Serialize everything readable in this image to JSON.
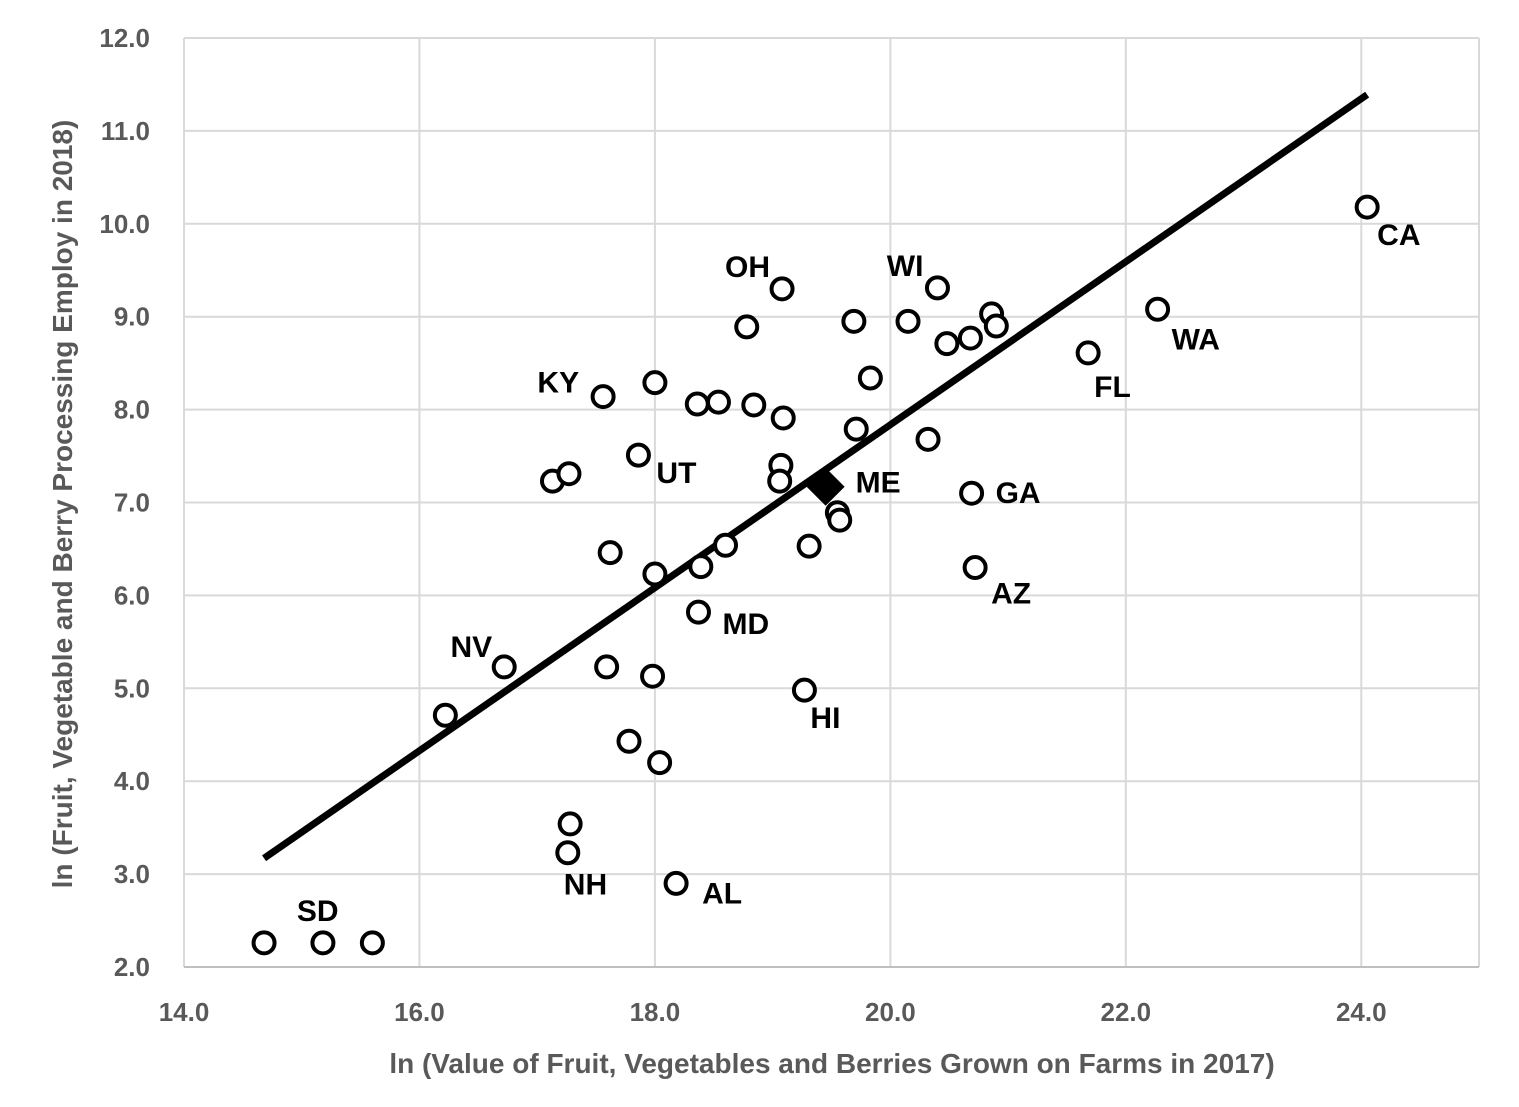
{
  "chart_data": {
    "type": "scatter",
    "xlabel": "ln (Value of Fruit, Vegetables and Berries Grown on Farms in 2017)",
    "ylabel": "ln (Fruit, Vegetable and Berry Processing Employ in 2018)",
    "xlim": [
      14.0,
      25.0
    ],
    "ylim": [
      2.0,
      12.0
    ],
    "x_ticks": [
      "14.0",
      "16.0",
      "18.0",
      "20.0",
      "22.0",
      "24.0"
    ],
    "y_ticks": [
      "2.0",
      "3.0",
      "4.0",
      "5.0",
      "6.0",
      "7.0",
      "8.0",
      "9.0",
      "10.0",
      "11.0",
      "12.0"
    ],
    "grid": true,
    "legend": "none",
    "colors": {
      "markers": "#000000",
      "trendline": "#000000",
      "grid": "#d9d9d9",
      "axis_text": "#595959"
    },
    "points": [
      {
        "x": 24.05,
        "y": 10.18,
        "label": "CA"
      },
      {
        "x": 22.27,
        "y": 9.08,
        "label": "WA"
      },
      {
        "x": 21.68,
        "y": 8.61,
        "label": "FL"
      },
      {
        "x": 20.4,
        "y": 9.31,
        "label": "WI"
      },
      {
        "x": 19.08,
        "y": 9.3,
        "label": "OH"
      },
      {
        "x": 20.69,
        "y": 7.1,
        "label": "GA"
      },
      {
        "x": 20.72,
        "y": 6.3,
        "label": "AZ"
      },
      {
        "x": 17.56,
        "y": 8.14,
        "label": "KY"
      },
      {
        "x": 17.86,
        "y": 7.51,
        "label": "UT"
      },
      {
        "x": 18.37,
        "y": 5.82,
        "label": "MD"
      },
      {
        "x": 16.72,
        "y": 5.23,
        "label": "NV"
      },
      {
        "x": 19.27,
        "y": 4.98,
        "label": "HI"
      },
      {
        "x": 17.26,
        "y": 3.23,
        "label": "NH"
      },
      {
        "x": 18.18,
        "y": 2.9,
        "label": "AL"
      },
      {
        "x": 15.18,
        "y": 2.26,
        "label": "SD"
      },
      {
        "x": 14.68,
        "y": 2.26,
        "label": ""
      },
      {
        "x": 15.6,
        "y": 2.26,
        "label": ""
      },
      {
        "x": 16.22,
        "y": 4.71,
        "label": ""
      },
      {
        "x": 17.28,
        "y": 3.54,
        "label": ""
      },
      {
        "x": 17.78,
        "y": 4.43,
        "label": ""
      },
      {
        "x": 18.04,
        "y": 4.2,
        "label": ""
      },
      {
        "x": 17.98,
        "y": 5.13,
        "label": ""
      },
      {
        "x": 17.59,
        "y": 5.23,
        "label": ""
      },
      {
        "x": 17.62,
        "y": 6.46,
        "label": ""
      },
      {
        "x": 18.0,
        "y": 6.23,
        "label": ""
      },
      {
        "x": 18.39,
        "y": 6.31,
        "label": ""
      },
      {
        "x": 18.6,
        "y": 6.54,
        "label": ""
      },
      {
        "x": 17.13,
        "y": 7.23,
        "label": ""
      },
      {
        "x": 17.27,
        "y": 7.31,
        "label": ""
      },
      {
        "x": 18.0,
        "y": 8.29,
        "label": ""
      },
      {
        "x": 18.36,
        "y": 8.06,
        "label": ""
      },
      {
        "x": 18.54,
        "y": 8.08,
        "label": ""
      },
      {
        "x": 18.84,
        "y": 8.05,
        "label": ""
      },
      {
        "x": 19.09,
        "y": 7.91,
        "label": ""
      },
      {
        "x": 18.78,
        "y": 8.89,
        "label": ""
      },
      {
        "x": 19.07,
        "y": 7.4,
        "label": ""
      },
      {
        "x": 19.06,
        "y": 7.23,
        "label": ""
      },
      {
        "x": 19.31,
        "y": 6.53,
        "label": ""
      },
      {
        "x": 19.55,
        "y": 6.89,
        "label": ""
      },
      {
        "x": 19.57,
        "y": 6.81,
        "label": ""
      },
      {
        "x": 19.71,
        "y": 7.79,
        "label": ""
      },
      {
        "x": 19.83,
        "y": 8.34,
        "label": ""
      },
      {
        "x": 19.69,
        "y": 8.95,
        "label": ""
      },
      {
        "x": 20.15,
        "y": 8.95,
        "label": ""
      },
      {
        "x": 20.32,
        "y": 7.68,
        "label": ""
      },
      {
        "x": 20.48,
        "y": 8.71,
        "label": ""
      },
      {
        "x": 20.68,
        "y": 8.77,
        "label": ""
      },
      {
        "x": 20.86,
        "y": 9.03,
        "label": ""
      },
      {
        "x": 20.9,
        "y": 8.9,
        "label": ""
      }
    ],
    "highlight_points": [
      {
        "x": 19.45,
        "y": 7.17,
        "label": "ME",
        "marker": "diamond"
      }
    ],
    "trendline": {
      "x": [
        14.68,
        24.05
      ],
      "y": [
        3.17,
        11.39
      ]
    }
  }
}
